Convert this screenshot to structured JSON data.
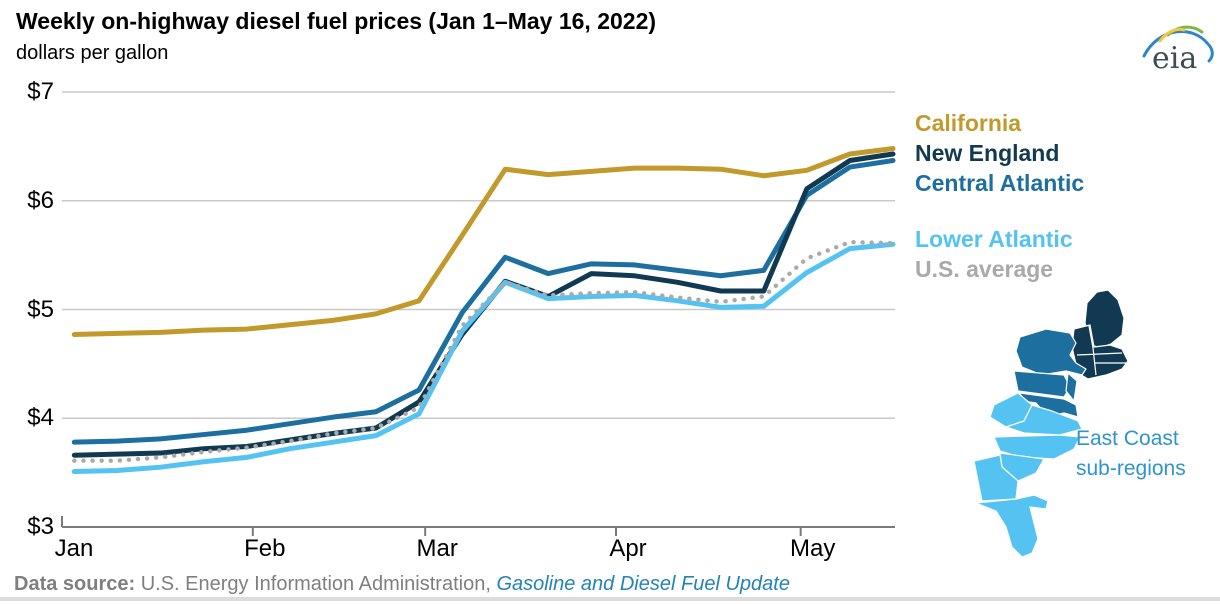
{
  "chart_data": {
    "type": "line",
    "title": "Weekly on-highway diesel fuel prices (Jan 1–May 16, 2022)",
    "units": "dollars per gallon",
    "grid": "horizontal gridlines on",
    "legend_position": "right",
    "ylim": [
      3,
      7
    ],
    "yticks": {
      "values": [
        7,
        6,
        5,
        4,
        3
      ],
      "labels": [
        "$7",
        "$6",
        "$5",
        "$4",
        "$3"
      ]
    },
    "xticks": {
      "day_offsets": [
        0,
        31,
        59,
        90,
        120
      ],
      "labels": [
        "Jan",
        "Feb",
        "Mar",
        "Apr",
        "May"
      ]
    },
    "x_dates": [
      "Jan 3",
      "Jan 10",
      "Jan 17",
      "Jan 24",
      "Jan 31",
      "Feb 7",
      "Feb 14",
      "Feb 21",
      "Feb 28",
      "Mar 7",
      "Mar 14",
      "Mar 21",
      "Mar 28",
      "Apr 4",
      "Apr 11",
      "Apr 18",
      "Apr 25",
      "May 2",
      "May 9",
      "May 16"
    ],
    "x_day_offsets": [
      2,
      9,
      16,
      23,
      30,
      37,
      44,
      51,
      58,
      65,
      72,
      79,
      86,
      93,
      100,
      107,
      114,
      121,
      128,
      135
    ],
    "series": [
      {
        "name": "California",
        "color": "#C19A2B",
        "style": "solid",
        "values": [
          4.77,
          4.78,
          4.79,
          4.81,
          4.82,
          4.86,
          4.9,
          4.96,
          5.08,
          5.68,
          6.29,
          6.24,
          6.27,
          6.3,
          6.3,
          6.29,
          6.23,
          6.28,
          6.43,
          6.48
        ]
      },
      {
        "name": "New England",
        "color": "#113A52",
        "style": "solid",
        "values": [
          3.66,
          3.67,
          3.68,
          3.72,
          3.74,
          3.8,
          3.86,
          3.91,
          4.15,
          4.77,
          5.26,
          5.12,
          5.33,
          5.31,
          5.25,
          5.17,
          5.17,
          6.11,
          6.37,
          6.43
        ]
      },
      {
        "name": "Central Atlantic",
        "color": "#1C6F9F",
        "style": "solid",
        "values": [
          3.78,
          3.79,
          3.81,
          3.85,
          3.89,
          3.95,
          4.01,
          4.06,
          4.26,
          4.97,
          5.48,
          5.33,
          5.42,
          5.41,
          5.36,
          5.31,
          5.36,
          6.05,
          6.31,
          6.37
        ]
      },
      {
        "name": "Lower Atlantic",
        "color": "#55C3F1",
        "style": "solid",
        "values": [
          3.51,
          3.52,
          3.55,
          3.6,
          3.64,
          3.72,
          3.78,
          3.84,
          4.04,
          4.8,
          5.25,
          5.1,
          5.12,
          5.13,
          5.08,
          5.02,
          5.03,
          5.34,
          5.56,
          5.6
        ]
      },
      {
        "name": "U.S. average",
        "color": "#A9A9A9",
        "style": "dotted",
        "values": [
          3.61,
          3.61,
          3.64,
          3.69,
          3.73,
          3.79,
          3.86,
          3.91,
          4.1,
          4.85,
          5.25,
          5.13,
          5.15,
          5.16,
          5.11,
          5.07,
          5.12,
          5.47,
          5.62,
          5.61
        ]
      }
    ]
  },
  "logo": {
    "text": "eia"
  },
  "map": {
    "caption_line1": "East Coast",
    "caption_line2": "sub-regions",
    "regions": [
      {
        "name": "New England",
        "color": "#113A52"
      },
      {
        "name": "Central Atlantic",
        "color": "#1C6F9F"
      },
      {
        "name": "Lower Atlantic",
        "color": "#55C3F1"
      }
    ]
  },
  "footer": {
    "label": "Data source: ",
    "source": "U.S. Energy Information Administration, ",
    "link": "Gasoline and Diesel Fuel Update"
  }
}
